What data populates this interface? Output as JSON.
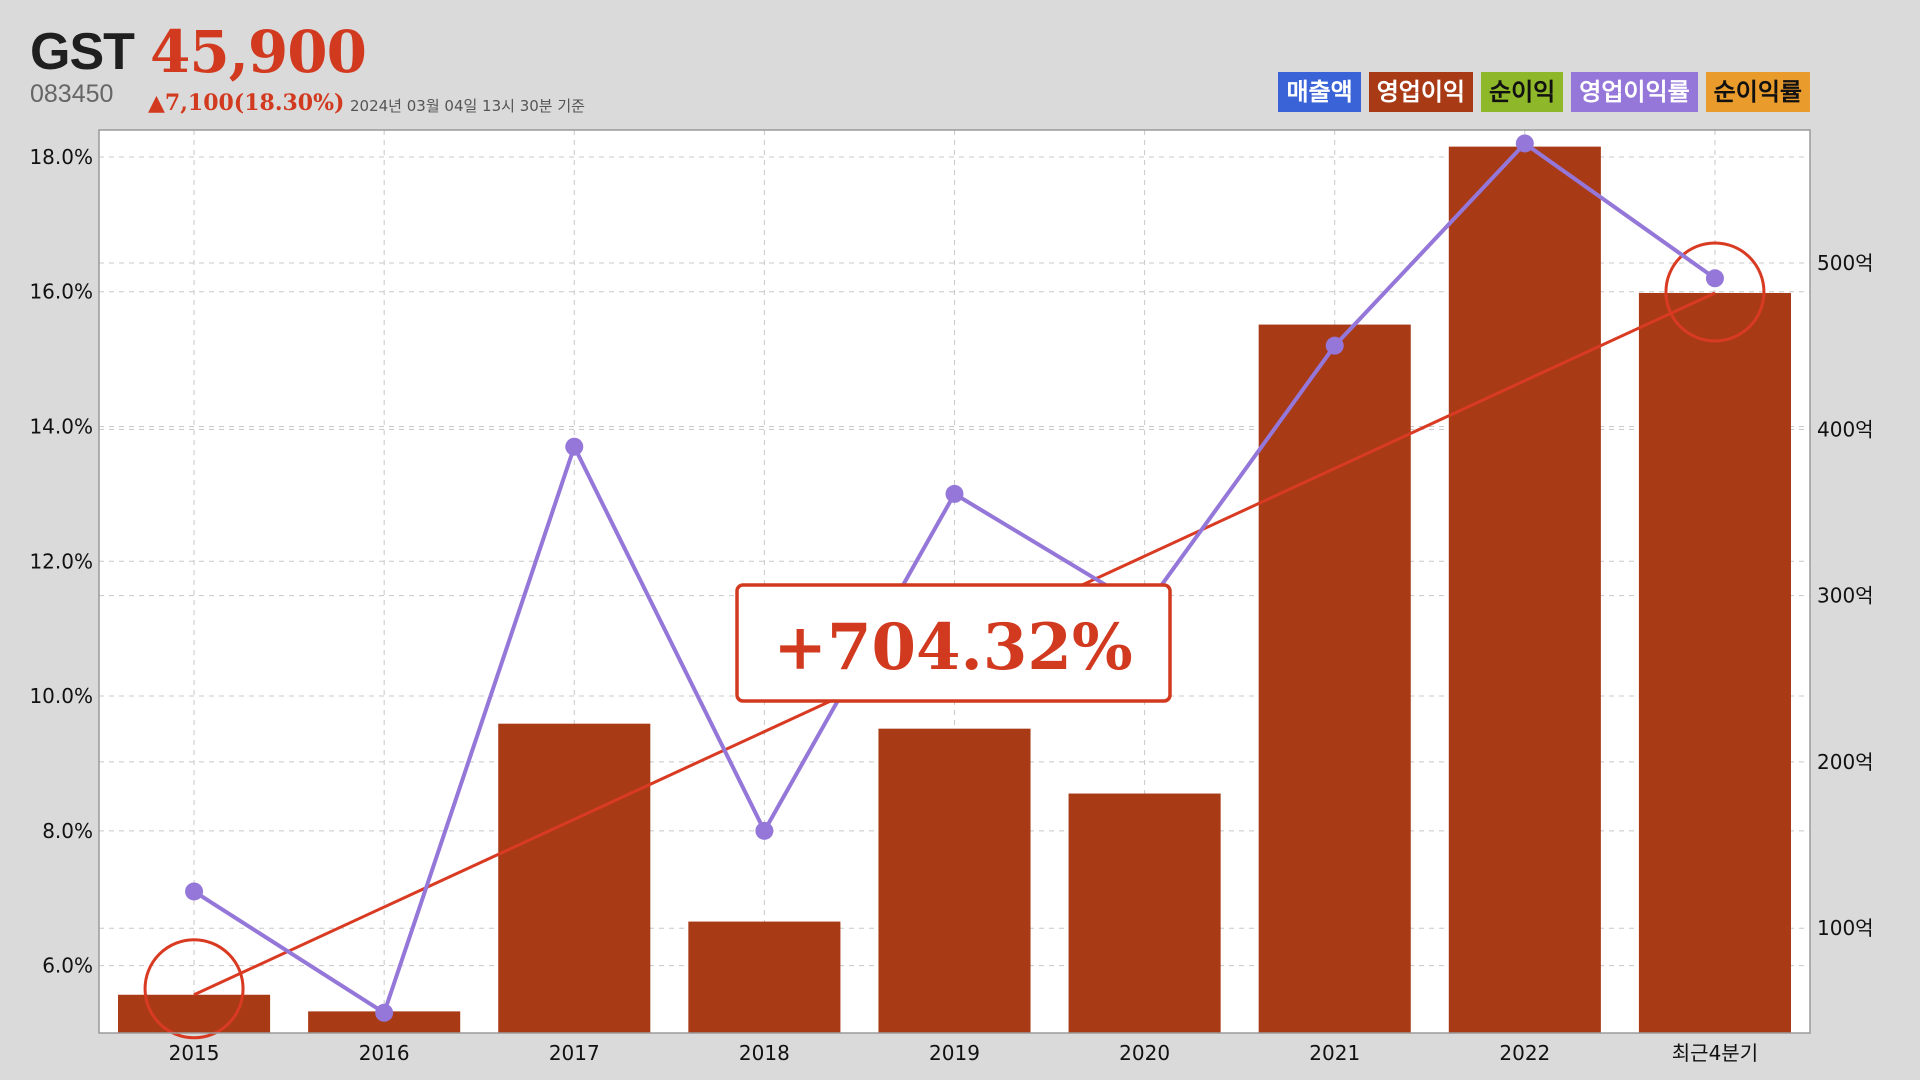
{
  "header": {
    "ticker": "GST",
    "price": "45,900",
    "code": "083450",
    "change": "▲7,100(18.30%)",
    "as_of": "2024년 03월 04일 13시 30분 기준"
  },
  "legend": [
    {
      "label": "매출액",
      "bg": "#3a63d8",
      "color": "#ffffff"
    },
    {
      "label": "영업이익",
      "bg": "#a83a16",
      "color": "#ffffff"
    },
    {
      "label": "순이익",
      "bg": "#8fb72a",
      "color": "#111111"
    },
    {
      "label": "영업이익률",
      "bg": "#9477d8",
      "color": "#ffffff"
    },
    {
      "label": "순이익률",
      "bg": "#e99b2c",
      "color": "#111111"
    }
  ],
  "colors": {
    "bar": "#a83a16",
    "margin_line": "#9477d8",
    "trend_line": "#d93a22",
    "grid": "#c8c8c8"
  },
  "chart_data": {
    "type": "bar",
    "categories": [
      "2015",
      "2016",
      "2017",
      "2018",
      "2019",
      "2020",
      "2021",
      "2022",
      "최근4분기"
    ],
    "series": [
      {
        "values": [
          60,
          50,
          223,
          104,
          220,
          181,
          463,
          570,
          482
        ],
        "axis": "right"
      },
      {
        "values": [
          7.1,
          5.3,
          13.7,
          8.0,
          13.0,
          11.3,
          15.2,
          18.2,
          16.2
        ],
        "axis": "left",
        "type": "line"
      }
    ],
    "yticks_left": [
      "6.0%",
      "8.0%",
      "10.0%",
      "12.0%",
      "14.0%",
      "16.0%",
      "18.0%"
    ],
    "yticks_right": [
      "100억",
      "200억",
      "300억",
      "400억",
      "500억"
    ],
    "ylim_left": [
      5.0,
      18.4
    ],
    "ylim_right": [
      37,
      580
    ],
    "annotation": "+704.32%",
    "trend_from": "2015",
    "trend_to": "최근4분기",
    "grid": true,
    "legend_position": "top-right"
  }
}
